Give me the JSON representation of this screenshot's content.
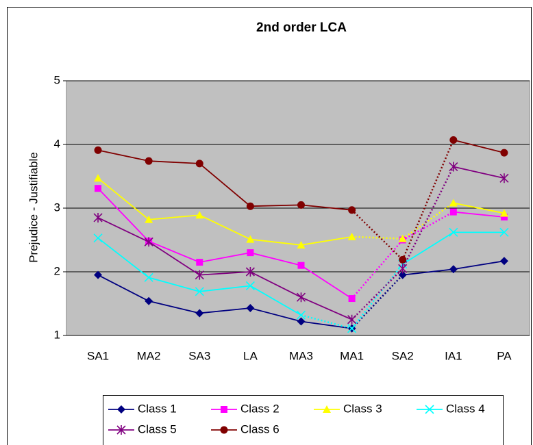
{
  "chart_data": {
    "type": "line",
    "title": "2nd order LCA",
    "y_label": "Prejudice - Justifiable",
    "categories": [
      "SA1",
      "MA2",
      "SA3",
      "LA",
      "MA3",
      "MA1",
      "SA2",
      "IA1",
      "PA"
    ],
    "series": [
      {
        "name": "Class 1",
        "color": "#000080",
        "marker": "diamond",
        "dotted": [
          5
        ],
        "values": [
          1.95,
          1.54,
          1.35,
          1.43,
          1.22,
          1.11,
          1.95,
          2.04,
          2.17
        ]
      },
      {
        "name": "Class 2",
        "color": "#ff00ff",
        "marker": "square",
        "dotted": [
          5,
          6
        ],
        "values": [
          3.31,
          2.48,
          2.15,
          2.3,
          2.1,
          1.58,
          2.5,
          2.94,
          2.86
        ]
      },
      {
        "name": "Class 3",
        "color": "#ffff00",
        "marker": "triangle",
        "dotted": [
          5,
          6
        ],
        "values": [
          3.47,
          2.82,
          2.89,
          2.51,
          2.42,
          2.55,
          2.52,
          3.08,
          2.92
        ]
      },
      {
        "name": "Class 4",
        "color": "#00ffff",
        "marker": "x",
        "dotted": [
          4,
          5
        ],
        "values": [
          2.53,
          1.91,
          1.69,
          1.78,
          1.32,
          1.11,
          2.12,
          2.62,
          2.62
        ]
      },
      {
        "name": "Class 5",
        "color": "#800080",
        "marker": "star",
        "dotted": [
          5,
          6
        ],
        "values": [
          2.85,
          2.47,
          1.95,
          2.0,
          1.6,
          1.25,
          2.05,
          3.65,
          3.47
        ]
      },
      {
        "name": "Class 6",
        "color": "#800000",
        "marker": "circle",
        "dotted": [
          5,
          6
        ],
        "values": [
          3.91,
          3.74,
          3.7,
          3.03,
          3.05,
          2.97,
          2.19,
          4.07,
          3.87
        ]
      }
    ],
    "ylim": [
      1,
      5
    ],
    "yticks": [
      1,
      2,
      3,
      4,
      5
    ],
    "grid": true,
    "legend": "bottom"
  }
}
